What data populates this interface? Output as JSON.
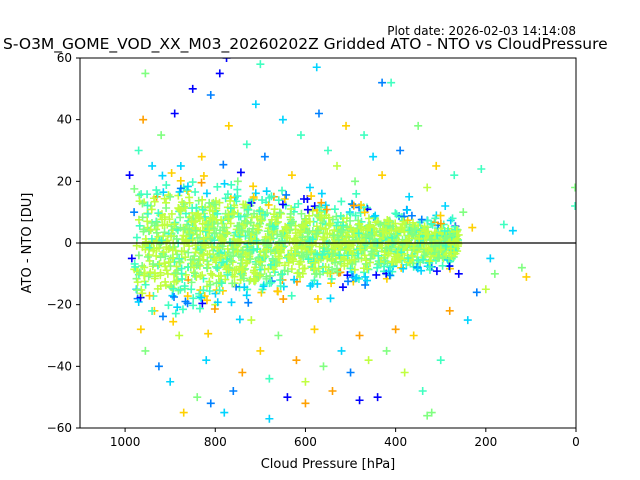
{
  "chart_data": {
    "type": "scatter",
    "title": "S-O3M_GOME_VOD_XX_M03_20260202Z Gridded ATO - NTO vs CloudPressure",
    "plot_date": "Plot date: 2026-02-03 14:14:08",
    "xlabel": "Cloud Pressure [hPa]",
    "ylabel": "ATO - NTO [DU]",
    "xlim": [
      1100,
      0
    ],
    "ylim": [
      -60,
      60
    ],
    "x_ticks": [
      1000,
      800,
      600,
      400,
      200,
      0
    ],
    "y_ticks": [
      -60,
      -40,
      -20,
      0,
      20,
      40,
      60
    ],
    "x_tick_labels": [
      "1000",
      "800",
      "600",
      "400",
      "200",
      "0"
    ],
    "y_tick_labels": [
      "−60",
      "−40",
      "−20",
      "0",
      "20",
      "40",
      "60"
    ],
    "reference_line_y": 0,
    "marker": "plus",
    "grid": false,
    "color_scale": [
      "#0000ff",
      "#0080ff",
      "#00d4ff",
      "#40ffc0",
      "#80ff80",
      "#c0ff40",
      "#ffd000",
      "#ffa000"
    ],
    "points": [
      [
        985,
        -5,
        0
      ],
      [
        980,
        10,
        1
      ],
      [
        975,
        -15,
        2
      ],
      [
        990,
        22,
        0
      ],
      [
        970,
        30,
        3
      ],
      [
        965,
        -28,
        6
      ],
      [
        960,
        40,
        7
      ],
      [
        955,
        -35,
        4
      ],
      [
        950,
        5,
        5
      ],
      [
        945,
        -10,
        3
      ],
      [
        940,
        25,
        2
      ],
      [
        935,
        -22,
        6
      ],
      [
        930,
        15,
        7
      ],
      [
        925,
        -40,
        1
      ],
      [
        920,
        35,
        4
      ],
      [
        900,
        -45,
        2
      ],
      [
        890,
        42,
        0
      ],
      [
        880,
        -30,
        5
      ],
      [
        870,
        18,
        3
      ],
      [
        860,
        -12,
        7
      ],
      [
        850,
        50,
        0
      ],
      [
        840,
        -50,
        4
      ],
      [
        830,
        28,
        6
      ],
      [
        820,
        -38,
        2
      ],
      [
        810,
        48,
        1
      ],
      [
        800,
        -20,
        5
      ],
      [
        790,
        55,
        0
      ],
      [
        780,
        -55,
        2
      ],
      [
        770,
        38,
        6
      ],
      [
        760,
        -48,
        1
      ],
      [
        750,
        20,
        4
      ],
      [
        740,
        -42,
        7
      ],
      [
        730,
        32,
        3
      ],
      [
        720,
        -25,
        5
      ],
      [
        710,
        45,
        2
      ],
      [
        700,
        -35,
        6
      ],
      [
        690,
        28,
        1
      ],
      [
        680,
        -44,
        3
      ],
      [
        670,
        15,
        7
      ],
      [
        660,
        -30,
        4
      ],
      [
        650,
        40,
        2
      ],
      [
        640,
        -50,
        0
      ],
      [
        630,
        22,
        6
      ],
      [
        620,
        -38,
        7
      ],
      [
        610,
        35,
        3
      ],
      [
        600,
        -45,
        5
      ],
      [
        590,
        18,
        2
      ],
      [
        580,
        -28,
        6
      ],
      [
        570,
        42,
        1
      ],
      [
        560,
        -40,
        4
      ],
      [
        550,
        30,
        3
      ],
      [
        540,
        -48,
        7
      ],
      [
        530,
        25,
        5
      ],
      [
        520,
        -35,
        2
      ],
      [
        510,
        38,
        6
      ],
      [
        500,
        -42,
        1
      ],
      [
        490,
        20,
        4
      ],
      [
        480,
        -30,
        7
      ],
      [
        470,
        35,
        3
      ],
      [
        460,
        -38,
        5
      ],
      [
        450,
        28,
        2
      ],
      [
        440,
        -50,
        0
      ],
      [
        430,
        22,
        6
      ],
      [
        420,
        -35,
        4
      ],
      [
        410,
        52,
        3
      ],
      [
        400,
        -28,
        7
      ],
      [
        390,
        30,
        1
      ],
      [
        380,
        -42,
        5
      ],
      [
        370,
        15,
        2
      ],
      [
        360,
        -30,
        6
      ],
      [
        350,
        38,
        4
      ],
      [
        340,
        -48,
        3
      ],
      [
        330,
        18,
        5
      ],
      [
        320,
        -55,
        4
      ],
      [
        310,
        25,
        6
      ],
      [
        300,
        -38,
        3
      ],
      [
        290,
        12,
        2
      ],
      [
        280,
        -22,
        7
      ],
      [
        270,
        22,
        3
      ],
      [
        260,
        -10,
        0
      ],
      [
        250,
        10,
        4
      ],
      [
        240,
        -25,
        2
      ],
      [
        230,
        5,
        6
      ],
      [
        220,
        -16,
        1
      ],
      [
        210,
        24,
        3
      ],
      [
        200,
        -15,
        5
      ],
      [
        190,
        -5,
        2
      ],
      [
        180,
        -10,
        4
      ],
      [
        160,
        6,
        3
      ],
      [
        140,
        4,
        2
      ],
      [
        120,
        -8,
        4
      ],
      [
        110,
        -11,
        6
      ],
      [
        2,
        18,
        4
      ],
      [
        2,
        12,
        3
      ],
      [
        955,
        55,
        4
      ],
      [
        870,
        -55,
        6
      ],
      [
        775,
        60,
        0
      ],
      [
        700,
        58,
        3
      ],
      [
        575,
        57,
        2
      ],
      [
        430,
        52,
        1
      ],
      [
        480,
        -51,
        0
      ],
      [
        330,
        -56,
        4
      ],
      [
        600,
        -52,
        7
      ],
      [
        680,
        -57,
        2
      ],
      [
        810,
        -52,
        1
      ]
    ]
  }
}
